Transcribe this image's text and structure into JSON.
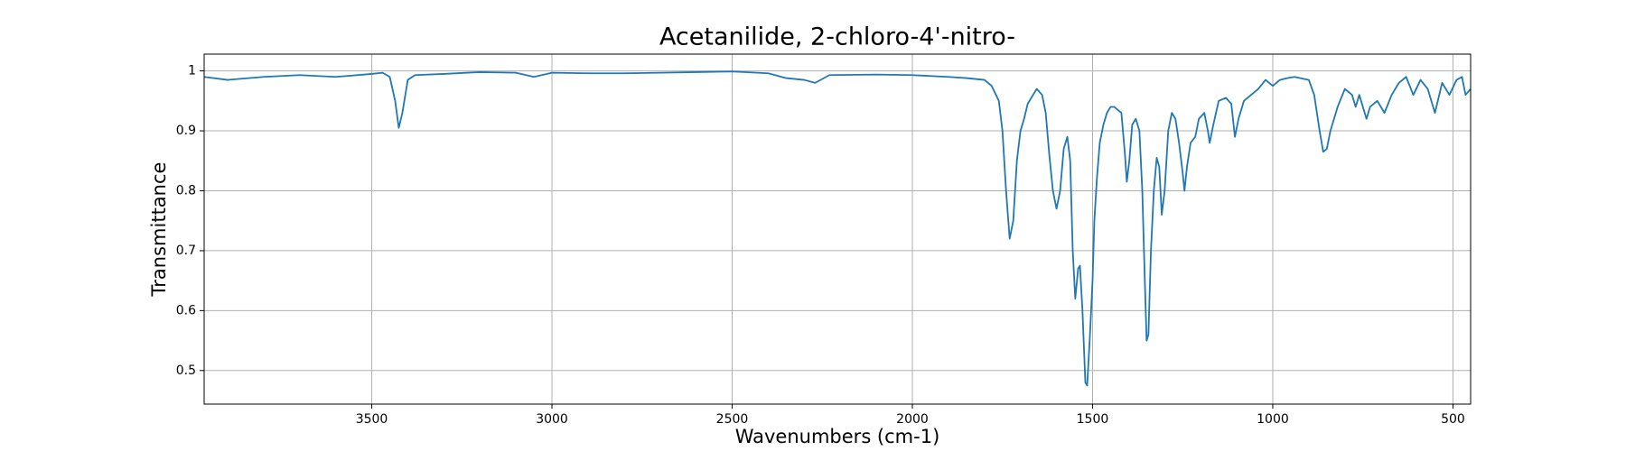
{
  "chart_data": {
    "type": "line",
    "title": "Acetanilide, 2-chloro-4'-nitro-",
    "xlabel": "Wavenumbers (cm-1)",
    "ylabel": "Transmittance",
    "xlim": [
      3965,
      451
    ],
    "xticks": [
      3500,
      3000,
      2500,
      2000,
      1500,
      1000,
      500
    ],
    "ylim": [
      0.444,
      1.028
    ],
    "yticks": [
      0.5,
      0.6,
      0.7,
      0.8,
      0.9,
      1.0
    ],
    "grid": true,
    "series": [
      {
        "color": "#1f77b4",
        "x": [
          3965,
          3900,
          3800,
          3700,
          3600,
          3500,
          3470,
          3450,
          3435,
          3425,
          3415,
          3400,
          3380,
          3300,
          3200,
          3100,
          3050,
          3000,
          2900,
          2800,
          2700,
          2600,
          2500,
          2400,
          2350,
          2300,
          2270,
          2230,
          2100,
          2000,
          1900,
          1850,
          1800,
          1780,
          1760,
          1750,
          1740,
          1730,
          1720,
          1710,
          1700,
          1690,
          1680,
          1665,
          1655,
          1640,
          1630,
          1620,
          1610,
          1600,
          1590,
          1580,
          1570,
          1562,
          1555,
          1548,
          1540,
          1535,
          1528,
          1520,
          1515,
          1508,
          1500,
          1495,
          1488,
          1480,
          1470,
          1460,
          1450,
          1440,
          1430,
          1420,
          1410,
          1405,
          1398,
          1390,
          1380,
          1370,
          1362,
          1355,
          1350,
          1345,
          1338,
          1330,
          1322,
          1315,
          1308,
          1300,
          1290,
          1280,
          1270,
          1260,
          1250,
          1245,
          1238,
          1228,
          1215,
          1205,
          1190,
          1180,
          1175,
          1165,
          1150,
          1130,
          1115,
          1105,
          1095,
          1080,
          1060,
          1040,
          1020,
          1000,
          980,
          960,
          940,
          900,
          885,
          870,
          860,
          850,
          840,
          820,
          800,
          780,
          770,
          760,
          740,
          730,
          710,
          690,
          670,
          650,
          630,
          610,
          590,
          570,
          550,
          530,
          510,
          490,
          475,
          465,
          451
        ],
        "values": [
          0.99,
          0.985,
          0.99,
          0.993,
          0.99,
          0.995,
          0.997,
          0.99,
          0.95,
          0.905,
          0.93,
          0.985,
          0.993,
          0.995,
          0.998,
          0.997,
          0.99,
          0.997,
          0.996,
          0.996,
          0.997,
          0.998,
          0.999,
          0.996,
          0.988,
          0.985,
          0.98,
          0.993,
          0.994,
          0.993,
          0.99,
          0.988,
          0.985,
          0.975,
          0.95,
          0.9,
          0.8,
          0.72,
          0.75,
          0.85,
          0.9,
          0.92,
          0.945,
          0.96,
          0.97,
          0.96,
          0.93,
          0.86,
          0.8,
          0.77,
          0.8,
          0.87,
          0.89,
          0.85,
          0.7,
          0.62,
          0.67,
          0.675,
          0.6,
          0.48,
          0.475,
          0.55,
          0.65,
          0.75,
          0.82,
          0.88,
          0.91,
          0.93,
          0.94,
          0.94,
          0.935,
          0.93,
          0.86,
          0.815,
          0.85,
          0.91,
          0.92,
          0.9,
          0.8,
          0.65,
          0.55,
          0.56,
          0.7,
          0.8,
          0.855,
          0.84,
          0.76,
          0.8,
          0.9,
          0.93,
          0.92,
          0.88,
          0.83,
          0.8,
          0.84,
          0.88,
          0.89,
          0.92,
          0.93,
          0.9,
          0.88,
          0.91,
          0.95,
          0.955,
          0.945,
          0.89,
          0.92,
          0.95,
          0.96,
          0.97,
          0.985,
          0.975,
          0.985,
          0.988,
          0.99,
          0.985,
          0.96,
          0.9,
          0.865,
          0.87,
          0.9,
          0.94,
          0.97,
          0.96,
          0.94,
          0.96,
          0.92,
          0.94,
          0.95,
          0.93,
          0.96,
          0.98,
          0.99,
          0.96,
          0.985,
          0.97,
          0.93,
          0.98,
          0.96,
          0.985,
          0.99,
          0.96,
          0.97
        ]
      }
    ]
  }
}
